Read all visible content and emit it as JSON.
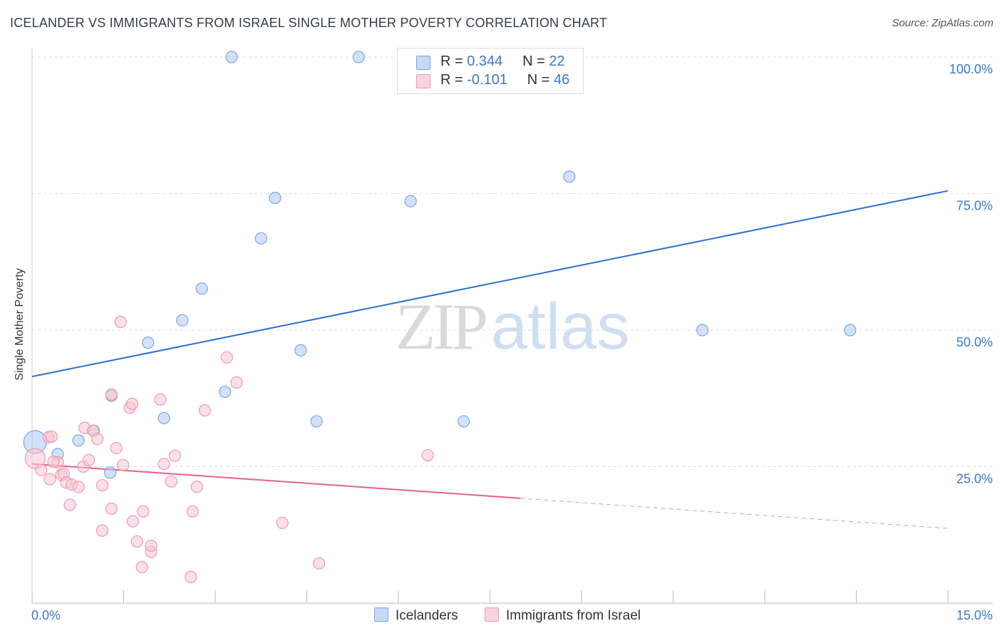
{
  "header": {
    "title": "ICELANDER VS IMMIGRANTS FROM ISRAEL SINGLE MOTHER POVERTY CORRELATION CHART",
    "source": "Source: ZipAtlas.com"
  },
  "watermark": {
    "zip": "ZIP",
    "atlas": "atlas"
  },
  "legend": {
    "rows": [
      {
        "r_label": "R =",
        "r_value": "0.344",
        "n_label": "N =",
        "n_value": "22",
        "color": "#aecbf2"
      },
      {
        "r_label": "R =",
        "r_value": "-0.101",
        "n_label": "N =",
        "n_value": "46",
        "color": "#f8c6d4"
      }
    ]
  },
  "bottom_legend": {
    "series1": "Icelanders",
    "series2": "Immigrants from Israel"
  },
  "chart_data": {
    "type": "scatter",
    "title": "ICELANDER VS IMMIGRANTS FROM ISRAEL SINGLE MOTHER POVERTY CORRELATION CHART",
    "xlabel": "",
    "ylabel": "Single Mother Poverty",
    "xlim": [
      0,
      15
    ],
    "ylim": [
      0,
      100
    ],
    "x_tick_labels": [
      "0.0%",
      "15.0%"
    ],
    "y_tick_labels": [
      "25.0%",
      "50.0%",
      "75.0%",
      "100.0%"
    ],
    "y_ticks": [
      25,
      50,
      75,
      100
    ],
    "grid": "horizontal dashed",
    "legend_position": "top-center",
    "series": [
      {
        "name": "Icelanders",
        "color": "#aecbf2",
        "stroke": "#7aa7df",
        "line_color": "#2e6fcc",
        "R": 0.344,
        "N": 22,
        "trend": {
          "x": [
            0,
            15
          ],
          "y": [
            41.5,
            75.5
          ],
          "solid_until": 15
        },
        "points": [
          [
            0.05,
            29.5,
            16
          ],
          [
            0.42,
            27.3,
            8
          ],
          [
            0.76,
            29.8,
            8
          ],
          [
            1.01,
            31.6,
            8
          ],
          [
            1.28,
            23.9,
            8
          ],
          [
            1.3,
            38.0,
            8
          ],
          [
            1.9,
            47.7,
            8
          ],
          [
            2.16,
            33.9,
            8
          ],
          [
            2.46,
            51.8,
            8
          ],
          [
            2.78,
            57.6,
            8
          ],
          [
            3.16,
            38.7,
            8
          ],
          [
            3.75,
            66.8,
            8
          ],
          [
            3.98,
            74.2,
            8
          ],
          [
            4.4,
            46.3,
            8
          ],
          [
            4.66,
            33.3,
            8
          ],
          [
            6.2,
            73.6,
            8
          ],
          [
            7.07,
            33.3,
            8
          ],
          [
            8.8,
            78.1,
            8
          ],
          [
            10.98,
            50.0,
            8
          ],
          [
            13.4,
            50.0,
            8
          ],
          [
            3.27,
            100.0,
            8
          ],
          [
            5.35,
            100.0,
            8
          ]
        ]
      },
      {
        "name": "Immigrants from Israel",
        "color": "#f8c6d4",
        "stroke": "#ee99b3",
        "line_color": "#e8608b",
        "R": -0.101,
        "N": 46,
        "trend": {
          "x": [
            0,
            15
          ],
          "y": [
            25.5,
            13.7
          ],
          "solid_until": 8.0
        },
        "points": [
          [
            0.05,
            26.5,
            14
          ],
          [
            0.15,
            24.4,
            8
          ],
          [
            0.27,
            30.4,
            8
          ],
          [
            0.29,
            22.7,
            8
          ],
          [
            0.42,
            25.8,
            8
          ],
          [
            0.48,
            23.5,
            8
          ],
          [
            0.52,
            23.7,
            8
          ],
          [
            0.56,
            22.1,
            8
          ],
          [
            0.62,
            18.0,
            8
          ],
          [
            0.65,
            21.7,
            8
          ],
          [
            0.76,
            21.3,
            8
          ],
          [
            0.84,
            25.0,
            8
          ],
          [
            0.86,
            32.1,
            8
          ],
          [
            0.93,
            26.2,
            8
          ],
          [
            1.0,
            31.6,
            8
          ],
          [
            1.07,
            30.1,
            8
          ],
          [
            1.15,
            13.3,
            8
          ],
          [
            1.15,
            21.6,
            8
          ],
          [
            1.3,
            38.2,
            8
          ],
          [
            1.3,
            17.3,
            8
          ],
          [
            1.38,
            28.4,
            8
          ],
          [
            1.45,
            51.5,
            8
          ],
          [
            1.49,
            25.3,
            8
          ],
          [
            1.6,
            35.8,
            8
          ],
          [
            1.64,
            36.5,
            8
          ],
          [
            1.65,
            15.0,
            8
          ],
          [
            1.72,
            11.3,
            8
          ],
          [
            1.8,
            6.6,
            8
          ],
          [
            1.82,
            16.8,
            8
          ],
          [
            1.95,
            9.4,
            8
          ],
          [
            1.95,
            10.5,
            8
          ],
          [
            2.1,
            37.3,
            8
          ],
          [
            2.16,
            25.5,
            8
          ],
          [
            2.28,
            22.3,
            8
          ],
          [
            2.34,
            27.0,
            8
          ],
          [
            2.6,
            4.8,
            8
          ],
          [
            2.63,
            16.8,
            8
          ],
          [
            2.7,
            21.3,
            8
          ],
          [
            2.83,
            35.3,
            8
          ],
          [
            3.19,
            45.0,
            8
          ],
          [
            3.35,
            40.4,
            8
          ],
          [
            4.1,
            14.7,
            8
          ],
          [
            4.7,
            7.3,
            8
          ],
          [
            6.48,
            27.1,
            8
          ],
          [
            0.32,
            30.5,
            8
          ],
          [
            0.35,
            25.9,
            8
          ]
        ]
      }
    ]
  }
}
